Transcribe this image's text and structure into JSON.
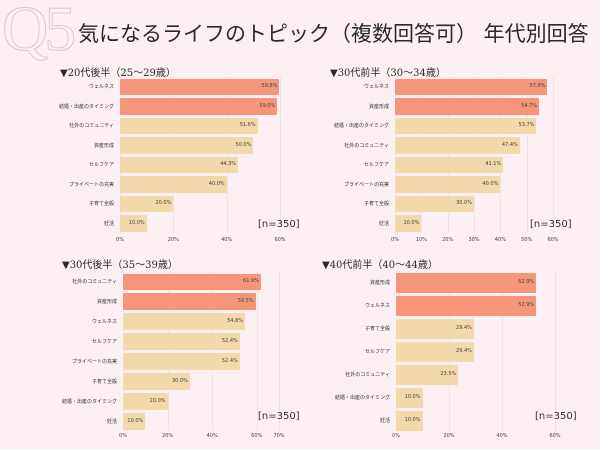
{
  "watermark": "Q5",
  "title": "気になるライフのトピック（複数回答可） 年代別回答",
  "colors": {
    "highlight": "#f5967c",
    "normal": "#f3d8ab",
    "background": "#fcf0f3"
  },
  "chart_data": [
    {
      "type": "bar",
      "orientation": "horizontal",
      "title": "▼20代後半（25～29歳）",
      "categories": [
        "ウェルネス",
        "結婚・出産のタイミング",
        "社外のコミュニティ",
        "資産形成",
        "セルフケア",
        "プライベートの充実",
        "子育て全般",
        "妊活"
      ],
      "values": [
        59.8,
        59.0,
        51.6,
        50.0,
        44.3,
        40.0,
        20.0,
        10.0
      ],
      "value_labels": [
        "59.8%",
        "59.0%",
        "51.6%",
        "50.0%",
        "44.3%",
        "40.0%",
        "20.0%",
        "10.0%"
      ],
      "highlighted": 2,
      "xticks": [
        "0%",
        "20%",
        "40%",
        "60%"
      ],
      "xtick_values": [
        0,
        20,
        40,
        60
      ],
      "xlim": [
        0,
        60
      ],
      "note": "[n=350]"
    },
    {
      "type": "bar",
      "orientation": "horizontal",
      "title": "▼30代前半（30～34歳）",
      "categories": [
        "ウェルネス",
        "資産形成",
        "結婚・出産のタイミング",
        "社外のコミュニティ",
        "セルフケア",
        "プライベートの充実",
        "子育て全般",
        "妊活"
      ],
      "values": [
        57.9,
        54.7,
        53.7,
        47.4,
        41.1,
        40.0,
        30.0,
        10.0
      ],
      "value_labels": [
        "57.9%",
        "54.7%",
        "53.7%",
        "47.4%",
        "41.1%",
        "40.0%",
        "30.0%",
        "10.0%"
      ],
      "highlighted": 2,
      "xticks": [
        "0%",
        "10%",
        "20%",
        "30%",
        "40%",
        "50%",
        "60%"
      ],
      "xtick_values": [
        0,
        10,
        20,
        30,
        40,
        50,
        60
      ],
      "xlim": [
        0,
        60
      ],
      "note": "[n=350]"
    },
    {
      "type": "bar",
      "orientation": "horizontal",
      "title": "▼30代後半（35～39歳）",
      "categories": [
        "社外のコミュニティ",
        "資産形成",
        "ウェルネス",
        "セルフケア",
        "プライベートの充実",
        "子育て全般",
        "結婚・出産のタイミング",
        "妊活"
      ],
      "values": [
        61.9,
        59.5,
        54.8,
        52.4,
        52.4,
        30.0,
        20.0,
        10.0
      ],
      "value_labels": [
        "61.9%",
        "59.5%",
        "54.8%",
        "52.4%",
        "52.4%",
        "30.0%",
        "20.0%",
        "10.0%"
      ],
      "highlighted": 2,
      "xticks": [
        "0%",
        "20%",
        "40%",
        "60%",
        "70%"
      ],
      "xtick_values": [
        0,
        20,
        40,
        60,
        70
      ],
      "xlim": [
        0,
        70
      ],
      "note": "[n=350]"
    },
    {
      "type": "bar",
      "orientation": "horizontal",
      "title": "▼40代前半（40～44歳）",
      "categories": [
        "資産形成",
        "ウェルネス",
        "子育て全般",
        "セルフケア",
        "社外のコミュニティ",
        "結婚・出産のタイミング",
        "妊活"
      ],
      "values": [
        52.9,
        52.9,
        29.4,
        29.4,
        23.5,
        10.0,
        10.0
      ],
      "value_labels": [
        "52.9%",
        "52.9%",
        "29.4%",
        "29.4%",
        "23.5%",
        "10.0%",
        "10.0%"
      ],
      "highlighted": 2,
      "xticks": [
        "0%",
        "20%",
        "40%",
        "60%"
      ],
      "xtick_values": [
        0,
        20,
        40,
        60
      ],
      "xlim": [
        0,
        60
      ],
      "note": "[n=350]"
    }
  ]
}
